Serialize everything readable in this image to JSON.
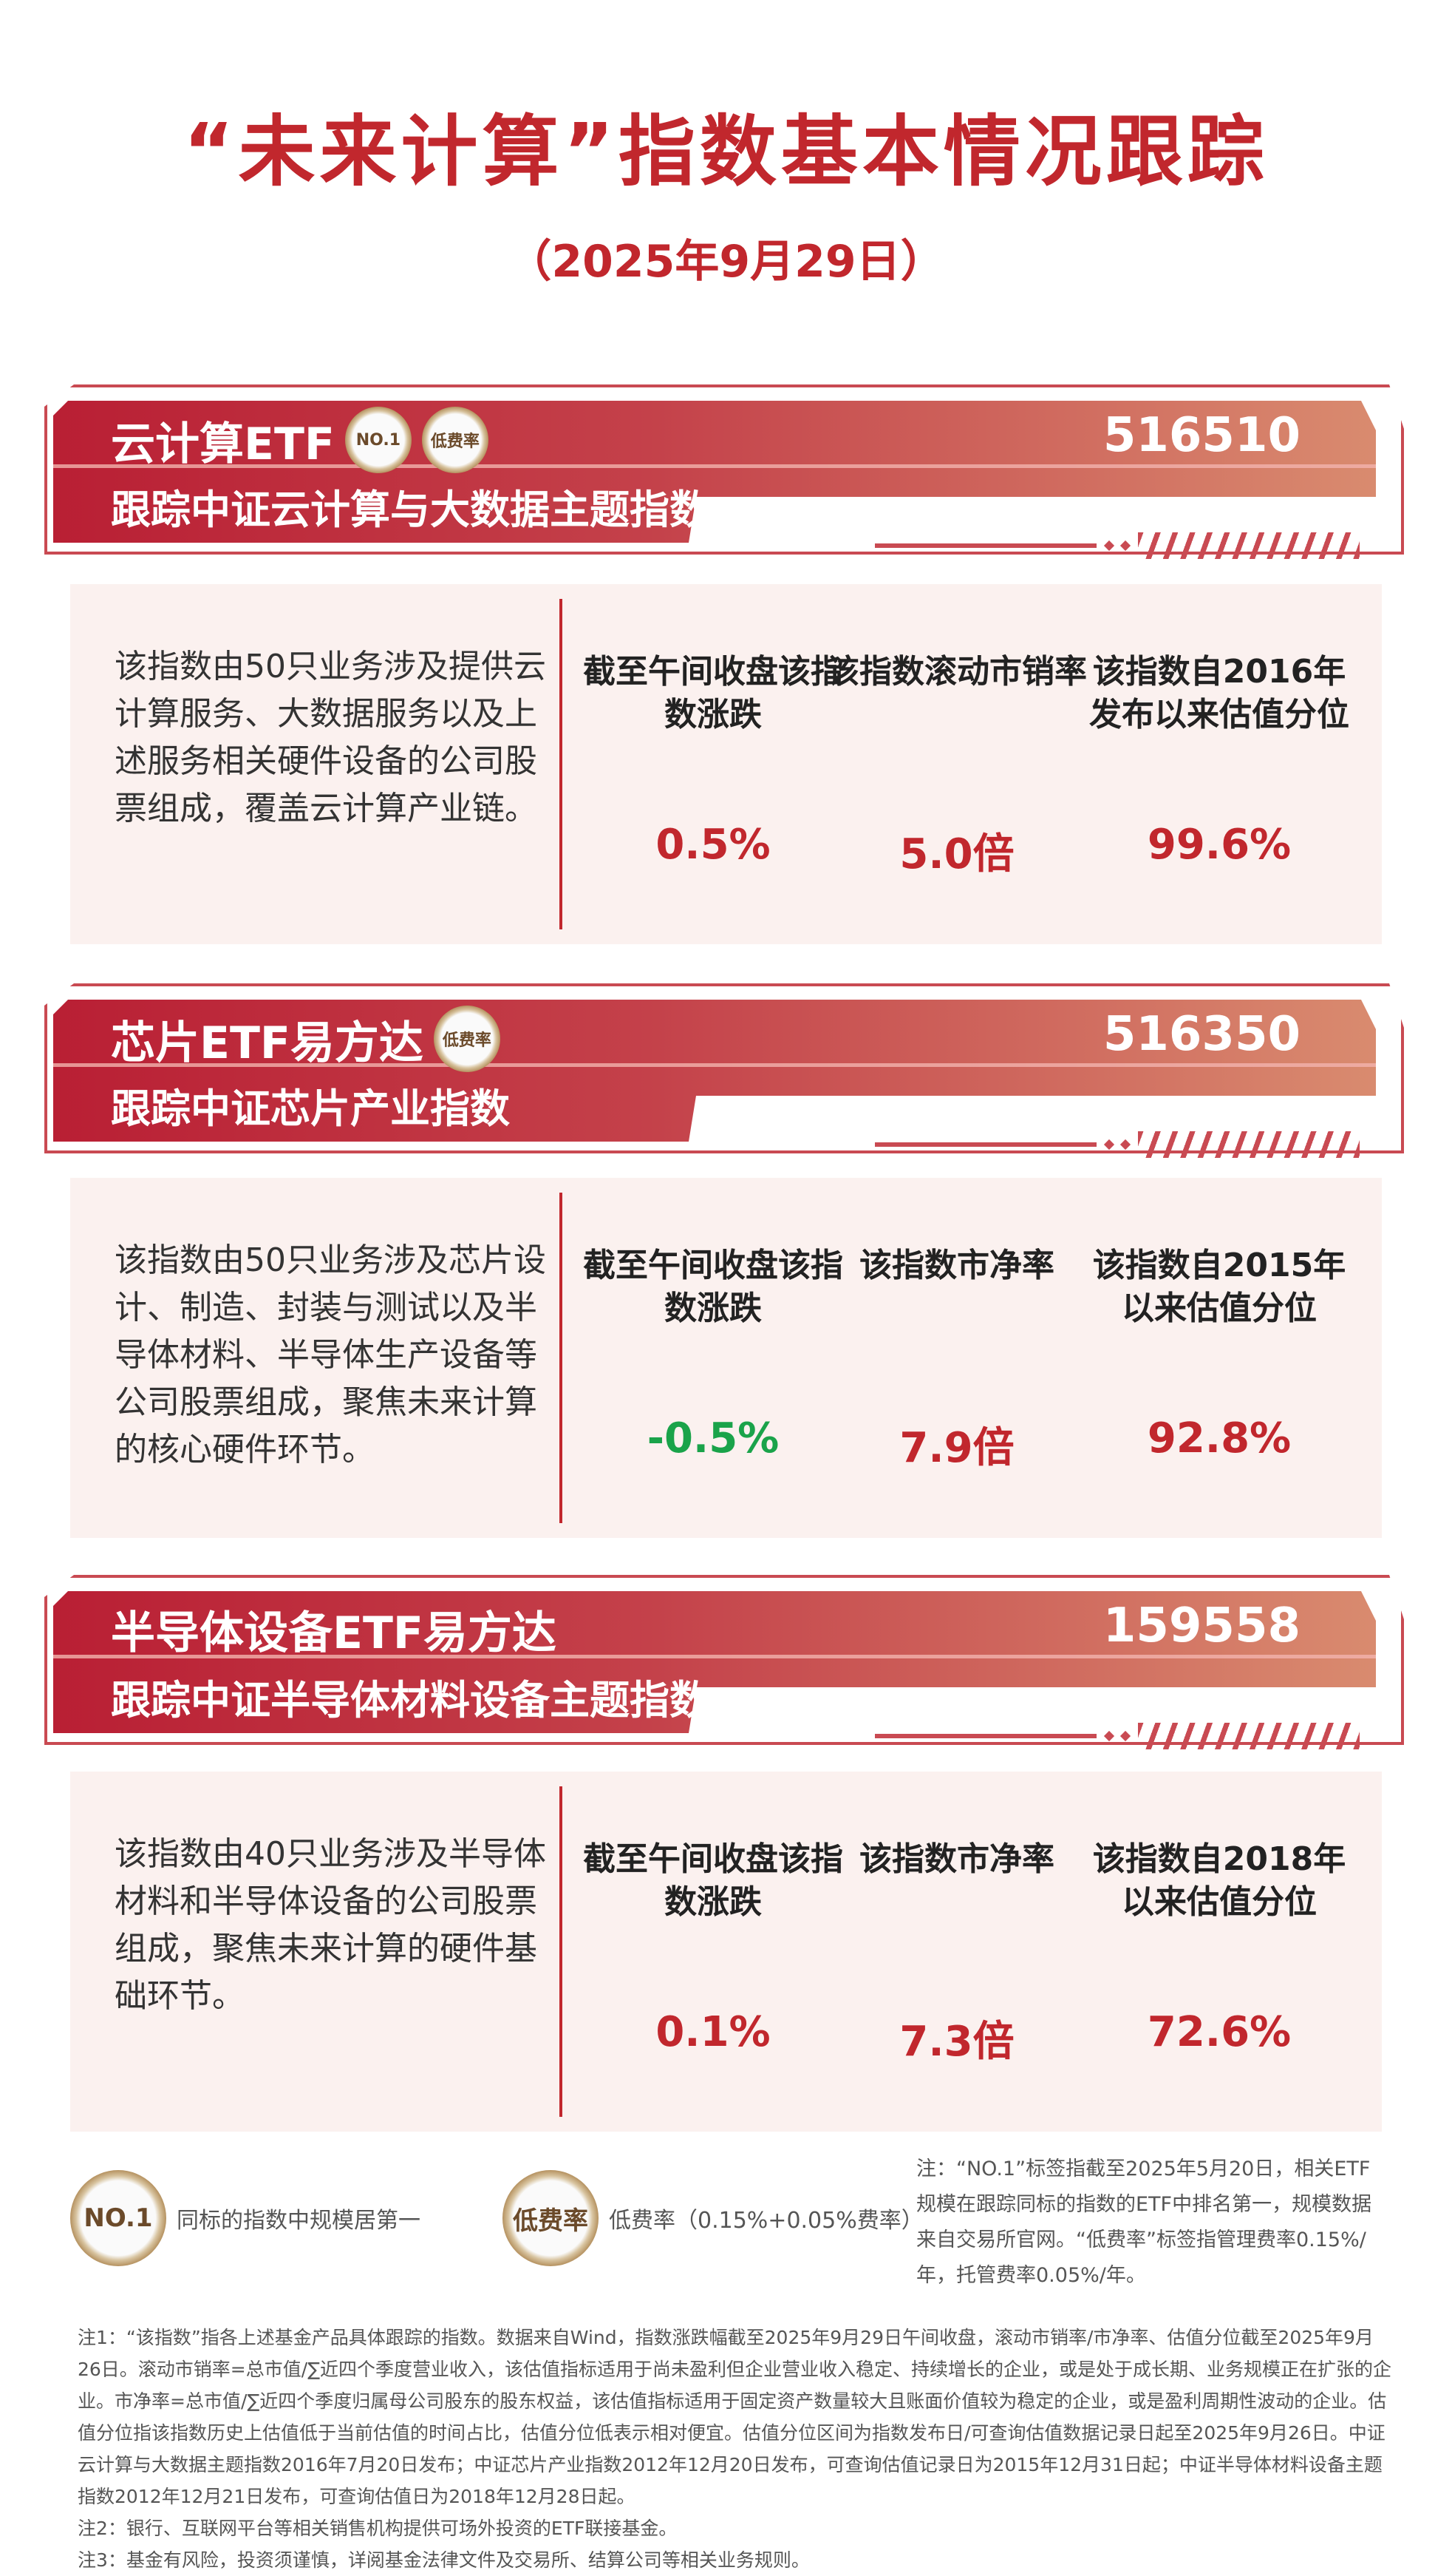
{
  "title": "“未来计算”指数基本情况跟踪",
  "date": "（2025年9月29日）",
  "colors": {
    "accent": "#c1272d",
    "up": "#c1272d",
    "down": "#1aa34a"
  },
  "funds": [
    {
      "name": "云计算ETF",
      "badges": [
        "NO.1",
        "低费率"
      ],
      "code": "516510",
      "subtitle": "跟踪中证云计算与大数据主题指数",
      "description": "该指数由50只业务涉及提供云计算服务、大数据服务以及上述服务相关硬件设备的公司股票组成，覆盖云计算产业链。",
      "metrics": [
        {
          "label": "截至午间收盘该指数涨跌",
          "value": "0.5%",
          "trend": "up"
        },
        {
          "label": "该指数滚动市销率",
          "value": "5.0倍",
          "trend": "up"
        },
        {
          "label": "该指数自2016年发布以来估值分位",
          "value": "99.6%",
          "trend": "up"
        }
      ]
    },
    {
      "name": "芯片ETF易方达",
      "badges": [
        "低费率"
      ],
      "code": "516350",
      "subtitle": "跟踪中证芯片产业指数",
      "description": "该指数由50只业务涉及芯片设计、制造、封装与测试以及半导体材料、半导体生产设备等公司股票组成，聚焦未来计算的核心硬件环节。",
      "metrics": [
        {
          "label": "截至午间收盘该指数涨跌",
          "value": "-0.5%",
          "trend": "down"
        },
        {
          "label": "该指数市净率",
          "value": "7.9倍",
          "trend": "up"
        },
        {
          "label": "该指数自2015年以来估值分位",
          "value": "92.8%",
          "trend": "up"
        }
      ]
    },
    {
      "name": "半导体设备ETF易方达",
      "badges": [],
      "code": "159558",
      "subtitle": "跟踪中证半导体材料设备主题指数",
      "description": "该指数由40只业务涉及半导体材料和半导体设备的公司股票组成，聚焦未来计算的硬件基础环节。",
      "metrics": [
        {
          "label": "截至午间收盘该指数涨跌",
          "value": "0.1%",
          "trend": "up"
        },
        {
          "label": "该指数市净率",
          "value": "7.3倍",
          "trend": "up"
        },
        {
          "label": "该指数自2018年以来估值分位",
          "value": "72.6%",
          "trend": "up"
        }
      ]
    }
  ],
  "legend": {
    "no1_badge": "NO.1",
    "no1_text": "同标的指数中规模居第一",
    "fee_badge": "低费率",
    "fee_text": "低费率（0.15%+0.05%费率）",
    "note": "注：“NO.1”标签指截至2025年5月20日，相关ETF规模在跟踪同标的指数的ETF中排名第一，规模数据来自交易所官网。“低费率”标签指管理费率0.15%/年，托管费率0.05%/年。"
  },
  "notes": [
    "注1：“该指数”指各上述基金产品具体跟踪的指数。数据来自Wind，指数涨跌幅截至2025年9月29日午间收盘，滚动市销率/市净率、估值分位截至2025年9月26日。滚动市销率=总市值/∑近四个季度营业收入，该估值指标适用于尚未盈利但企业营业收入稳定、持续增长的企业，或是处于成长期、业务规模正在扩张的企业。市净率=总市值/∑近四个季度归属母公司股东的股东权益，该估值指标适用于固定资产数量较大且账面价值较为稳定的企业，或是盈利周期性波动的企业。估值分位指该指数历史上估值低于当前估值的时间占比，估值分位低表示相对便宜。估值分位区间为指数发布日/可查询估值数据记录日起至2025年9月26日。中证云计算与大数据主题指数2016年7月20日发布；中证芯片产业指数2012年12月20日发布，可查询估值记录日为2015年12月31日起；中证半导体材料设备主题指数2012年12月21日发布，可查询估值日为2018年12月28日起。",
    "注2：银行、互联网平台等相关销售机构提供可场外投资的ETF联接基金。",
    "注3：基金有风险，投资须谨慎，详阅基金法律文件及交易所、结算公司等相关业务规则。"
  ]
}
